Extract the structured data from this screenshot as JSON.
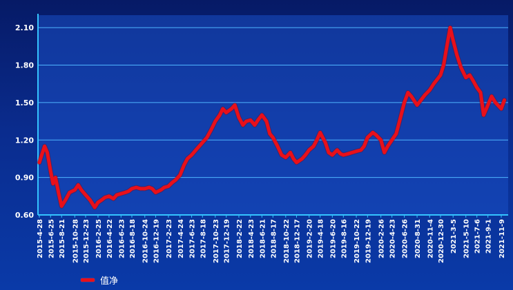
{
  "colors": {
    "background_top": "#061a66",
    "background_bottom": "#0a3aa8",
    "plot_fill": "#1a4fc4",
    "gridline": "#4fb6ff",
    "axis": "#35c5ff",
    "series": "#e8101a",
    "text": "#ffffff"
  },
  "chart_data": {
    "type": "line",
    "title": "",
    "xlabel": "",
    "ylabel": "",
    "ylim": [
      0.6,
      2.2
    ],
    "yticks": [
      "0.60",
      "0.90",
      "1.20",
      "1.50",
      "1.80",
      "2.10"
    ],
    "ytick_values": [
      0.6,
      0.9,
      1.2,
      1.5,
      1.8,
      2.1
    ],
    "xticks": [
      "2015-4-28",
      "2015-6-25",
      "2015-8-21",
      "2015-10-28",
      "2015-12-23",
      "2016-2-25",
      "2016-4-22",
      "2016-6-23",
      "2016-8-18",
      "2016-10-24",
      "2016-12-19",
      "2017-2-23",
      "2017-4-24",
      "2017-6-23",
      "2017-8-18",
      "2017-10-23",
      "2017-12-19",
      "2018-2-22",
      "2018-4-23",
      "2018-6-21",
      "2018-8-17",
      "2018-10-22",
      "2018-12-17",
      "2019-2-20",
      "2019-4-18",
      "2019-6-20",
      "2019-8-16",
      "2019-10-22",
      "2019-12-19",
      "2020-2-26",
      "2020-4-23",
      "2020-6-26",
      "2020-8-31",
      "2020-11-4",
      "2020-12-30",
      "2021-3-5",
      "2021-5-10",
      "2021-7-6",
      "2021-9-1",
      "2021-11-9"
    ],
    "grid": true,
    "legend_position": "bottom-left",
    "series": [
      {
        "name": "值净",
        "x": [
          "2015-4-28",
          "2015-5-10",
          "2015-5-25",
          "2015-6-8",
          "2015-6-25",
          "2015-7-8",
          "2015-7-20",
          "2015-8-5",
          "2015-8-21",
          "2015-9-10",
          "2015-10-1",
          "2015-10-28",
          "2015-11-15",
          "2015-12-1",
          "2015-12-23",
          "2016-1-15",
          "2016-2-8",
          "2016-2-25",
          "2016-3-15",
          "2016-4-1",
          "2016-4-22",
          "2016-5-15",
          "2016-6-1",
          "2016-6-23",
          "2016-7-15",
          "2016-8-1",
          "2016-8-18",
          "2016-9-10",
          "2016-10-1",
          "2016-10-24",
          "2016-11-15",
          "2016-12-1",
          "2016-12-19",
          "2017-1-15",
          "2017-2-1",
          "2017-2-23",
          "2017-3-15",
          "2017-4-1",
          "2017-4-24",
          "2017-5-15",
          "2017-6-1",
          "2017-6-23",
          "2017-7-15",
          "2017-8-1",
          "2017-8-18",
          "2017-9-10",
          "2017-10-1",
          "2017-10-23",
          "2017-11-15",
          "2017-12-1",
          "2017-12-19",
          "2018-1-15",
          "2018-2-1",
          "2018-2-22",
          "2018-3-15",
          "2018-4-1",
          "2018-4-23",
          "2018-5-15",
          "2018-6-1",
          "2018-6-21",
          "2018-7-15",
          "2018-8-1",
          "2018-8-17",
          "2018-9-10",
          "2018-10-1",
          "2018-10-22",
          "2018-11-15",
          "2018-12-1",
          "2018-12-17",
          "2019-1-15",
          "2019-2-1",
          "2019-2-20",
          "2019-3-15",
          "2019-4-1",
          "2019-4-18",
          "2019-5-15",
          "2019-6-1",
          "2019-6-20",
          "2019-7-15",
          "2019-8-1",
          "2019-8-16",
          "2019-9-10",
          "2019-10-1",
          "2019-10-22",
          "2019-11-15",
          "2019-12-1",
          "2019-12-19",
          "2020-1-15",
          "2020-2-1",
          "2020-2-26",
          "2020-3-15",
          "2020-4-1",
          "2020-4-23",
          "2020-5-15",
          "2020-6-1",
          "2020-6-26",
          "2020-7-15",
          "2020-8-1",
          "2020-8-31",
          "2020-9-20",
          "2020-10-10",
          "2020-11-4",
          "2020-11-25",
          "2020-12-10",
          "2020-12-30",
          "2021-1-15",
          "2021-2-1",
          "2021-2-18",
          "2021-3-5",
          "2021-3-25",
          "2021-4-15",
          "2021-5-10",
          "2021-5-30",
          "2021-6-15",
          "2021-7-6",
          "2021-7-25",
          "2021-8-10",
          "2021-9-1",
          "2021-9-20",
          "2021-10-10",
          "2021-11-9",
          "2021-11-25"
        ],
        "values": [
          1.02,
          1.08,
          1.15,
          1.1,
          0.95,
          0.85,
          0.9,
          0.78,
          0.67,
          0.72,
          0.78,
          0.8,
          0.84,
          0.8,
          0.76,
          0.72,
          0.66,
          0.7,
          0.72,
          0.74,
          0.75,
          0.73,
          0.76,
          0.77,
          0.78,
          0.79,
          0.81,
          0.82,
          0.81,
          0.81,
          0.82,
          0.81,
          0.78,
          0.8,
          0.82,
          0.83,
          0.86,
          0.88,
          0.92,
          1.0,
          1.05,
          1.08,
          1.12,
          1.15,
          1.18,
          1.22,
          1.28,
          1.35,
          1.4,
          1.45,
          1.42,
          1.45,
          1.48,
          1.38,
          1.32,
          1.35,
          1.36,
          1.32,
          1.36,
          1.4,
          1.35,
          1.25,
          1.22,
          1.15,
          1.08,
          1.06,
          1.1,
          1.05,
          1.02,
          1.05,
          1.08,
          1.12,
          1.15,
          1.2,
          1.26,
          1.18,
          1.1,
          1.08,
          1.12,
          1.09,
          1.08,
          1.09,
          1.1,
          1.11,
          1.12,
          1.15,
          1.22,
          1.26,
          1.24,
          1.2,
          1.1,
          1.15,
          1.2,
          1.25,
          1.35,
          1.5,
          1.58,
          1.55,
          1.48,
          1.52,
          1.56,
          1.6,
          1.65,
          1.68,
          1.72,
          1.8,
          1.95,
          2.1,
          2.0,
          1.88,
          1.78,
          1.7,
          1.72,
          1.68,
          1.62,
          1.58,
          1.4,
          1.48,
          1.55,
          1.5,
          1.45,
          1.52
        ]
      }
    ]
  },
  "legend": {
    "label": "值净"
  }
}
